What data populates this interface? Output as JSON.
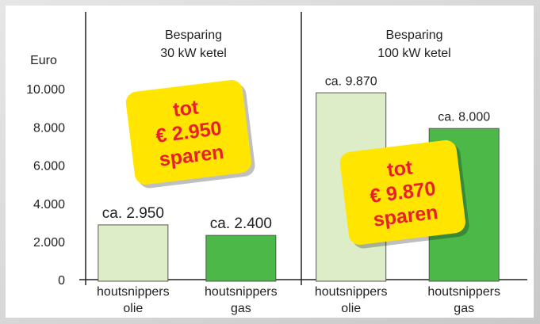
{
  "chart_data": {
    "type": "bar",
    "y_label": "Euro",
    "categories": [
      "Besparing\n30 kW ketel",
      "Besparing\n100 kW ketel"
    ],
    "series": [
      {
        "name": "houtsnippers olie",
        "color": "#dcedc8",
        "values": [
          2950,
          9870
        ],
        "value_labels": [
          "ca. 2.950",
          "ca. 9.870"
        ]
      },
      {
        "name": "houtsnippers gas",
        "color": "#4cb848",
        "values": [
          2400,
          8000
        ],
        "value_labels": [
          "ca. 2.400",
          "ca. 8.000"
        ]
      }
    ],
    "ylim": [
      0,
      10000
    ],
    "yticks": [
      0,
      {
        "value": 2000,
        "label": "2.000"
      },
      {
        "value": 4000,
        "label": "4.000"
      },
      {
        "value": 6000,
        "label": "6.000"
      },
      {
        "value": 8000,
        "label": "8.000"
      },
      {
        "value": 10000,
        "label": "10.000"
      }
    ],
    "annotations": [
      "tot\n€ 2.950\nsparen",
      "tot\n€ 9.870\nsparen"
    ]
  }
}
